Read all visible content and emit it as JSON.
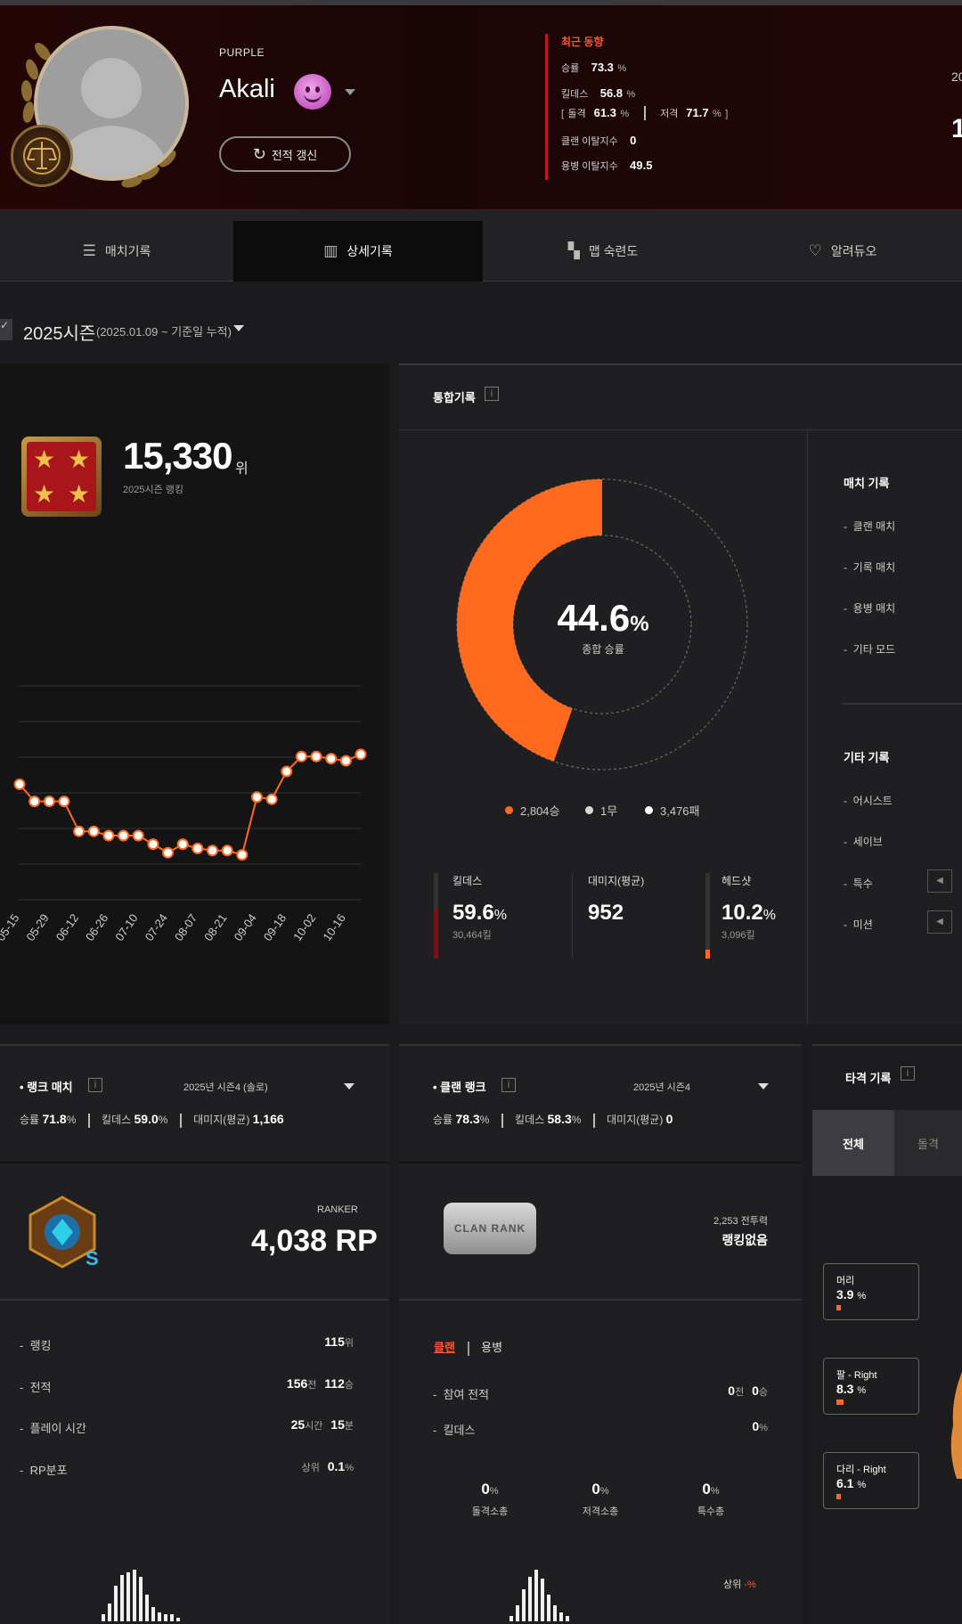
{
  "header": {
    "tier": "PURPLE",
    "nickname": "Akali",
    "refresh_label": "전적 갱신",
    "recent": {
      "title": "최근 동향",
      "winrate_label": "승률",
      "winrate_value": "73.3",
      "winrate_unit": "%",
      "kd_label": "킬데스",
      "kd_value": "56.8",
      "kd_unit": "%",
      "assault_label": "돌격",
      "assault_value": "61.3",
      "assault_unit": "%",
      "sniper_label": "저격",
      "sniper_value": "71.7",
      "sniper_unit": "%",
      "clan_leave_label": "클랜 이탈지수",
      "clan_leave_value": "0",
      "merc_leave_label": "용병 이탈지수",
      "merc_leave_value": "49.5"
    },
    "right_cut_top": "20",
    "right_cut_big": "1"
  },
  "tabs": [
    {
      "label": "매치기록",
      "icon": "list-icon"
    },
    {
      "label": "상세기록",
      "icon": "chart-icon"
    },
    {
      "label": "맵 숙련도",
      "icon": "map-icon"
    },
    {
      "label": "알려듀오",
      "icon": "heart-handshake-icon"
    }
  ],
  "season": {
    "title": "2025시즌",
    "range": "(2025.01.09 ~ 기준일 누적)"
  },
  "ranking_card": {
    "rank": "15,330",
    "rank_unit": "위",
    "subtitle": "2025시즌 랭킹"
  },
  "chart_data": {
    "type": "line",
    "categories": [
      "05-15",
      "05-29",
      "06-12",
      "06-26",
      "07-10",
      "07-24",
      "08-07",
      "08-21",
      "09-04",
      "09-18",
      "10-02",
      "10-16"
    ],
    "x": [
      "05-15",
      "05-22",
      "05-29",
      "06-05",
      "06-12",
      "06-19",
      "06-26",
      "07-03",
      "07-10",
      "07-17",
      "07-24",
      "07-31",
      "08-07",
      "08-14",
      "08-21",
      "08-28",
      "09-04",
      "09-11",
      "09-18",
      "09-25",
      "10-02",
      "10-09",
      "10-16",
      "10-23"
    ],
    "values": [
      54,
      46,
      46,
      46,
      32,
      32,
      30,
      30,
      30,
      26,
      22,
      26,
      24,
      23,
      23,
      21,
      48,
      47,
      60,
      67,
      67,
      66,
      65,
      68
    ],
    "ylim": [
      0,
      100
    ],
    "grid": true,
    "title": "",
    "xlabel": "",
    "ylabel": ""
  },
  "combined": {
    "title": "통합기록",
    "winrate": "44.6",
    "winrate_unit": "%",
    "winrate_label": "종합 승률",
    "wins": "2,804승",
    "draws": "1무",
    "losses": "3,476패",
    "win_fraction": 0.446,
    "kd_label": "킬데스",
    "kd_value": "59.6",
    "kd_unit": "%",
    "kd_sub": "30,464킬",
    "dmg_label": "대미지(평균)",
    "dmg_value": "952",
    "hs_label": "헤드샷",
    "hs_value": "10.2",
    "hs_unit": "%",
    "hs_sub": "3,096킬",
    "colors": {
      "win": "#ff6a1f",
      "draw": "#d8d8d8",
      "loss": "#ffffff"
    }
  },
  "match_records": {
    "title": "매치 기록",
    "items": [
      "클랜 매치",
      "기록 매치",
      "용병 매치",
      "기타 모드"
    ],
    "other_title": "기타 기록",
    "other_items": [
      "어시스트",
      "세이브",
      "특수",
      "미션"
    ]
  },
  "rank_match": {
    "title": "랭크 매치",
    "season": "2025년 시즌4 (솔로)",
    "winrate_label": "승률",
    "winrate": "71.8",
    "unit": "%",
    "kd_label": "킬데스",
    "kd": "59.0",
    "dmg_label": "대미지(평균)",
    "dmg": "1,166",
    "rp_label": "RANKER",
    "rp": "4,038 RP",
    "rows": [
      {
        "label": "랭킹",
        "v1": "115",
        "u1": "위",
        "v2": "",
        "u2": ""
      },
      {
        "label": "전적",
        "v1": "156",
        "u1": "전",
        "v2": "112",
        "u2": "승"
      },
      {
        "label": "플레이 시간",
        "v1": "25",
        "u1": "시간",
        "v2": "15",
        "u2": "분"
      },
      {
        "label": "RP분포",
        "pre": "상위",
        "v1": "0.1",
        "u1": "%",
        "v2": "",
        "u2": ""
      }
    ]
  },
  "clan_rank": {
    "title": "클랜 랭크",
    "season": "2025년 시즌4",
    "winrate_label": "승률",
    "winrate": "78.3",
    "unit": "%",
    "kd_label": "킬데스",
    "kd": "58.3",
    "dmg_label": "대미지(평균)",
    "dmg": "0",
    "tag_text": "CLAN RANK",
    "power": "2,253 전투력",
    "rank_none": "랭킹없음",
    "tab_clan": "클랜",
    "tab_merc": "용병",
    "games_label": "참여 전적",
    "games_v1": "0",
    "games_u1": "전",
    "games_v2": "0",
    "games_u2": "승",
    "kd_row_label": "킬데스",
    "kd_row_val": "0",
    "kd_row_unit": "%",
    "weapons": [
      {
        "value": "0",
        "unit": "%",
        "label": "돌격소총"
      },
      {
        "value": "0",
        "unit": "%",
        "label": "저격소총"
      },
      {
        "value": "0",
        "unit": "%",
        "label": "특수총"
      }
    ],
    "top_label": "상위",
    "top_value": "-%"
  },
  "hit_records": {
    "title": "타격 기록",
    "tab_all": "전체",
    "tab_assault": "돌격",
    "parts": [
      {
        "label": "머리",
        "value": "3.9",
        "unit": "%"
      },
      {
        "label": "팔 - Right",
        "value": "8.3",
        "unit": "%"
      },
      {
        "label": "다리 - Right",
        "value": "6.1",
        "unit": "%"
      }
    ]
  }
}
